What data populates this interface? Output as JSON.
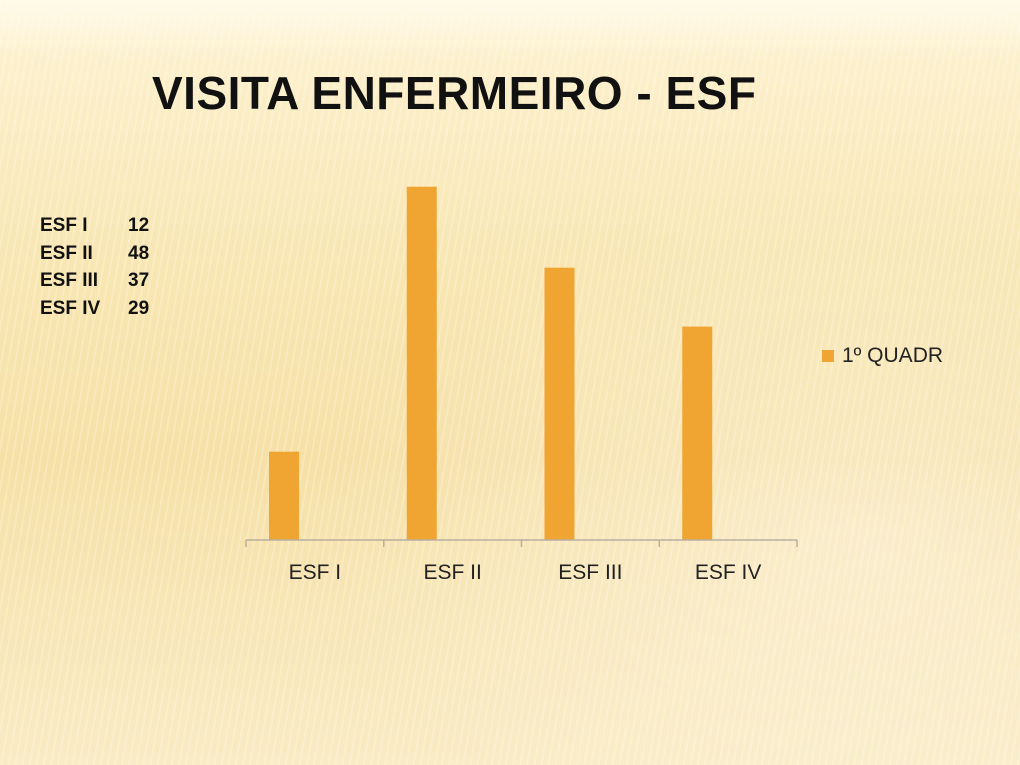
{
  "slide": {
    "title": "VISITA ENFERMEIRO - ESF",
    "data_list": [
      {
        "label": "ESF I",
        "value": "12"
      },
      {
        "label": "ESF II",
        "value": "48"
      },
      {
        "label": "ESF III",
        "value": "37"
      },
      {
        "label": "ESF IV",
        "value": "29"
      }
    ]
  },
  "chart_data": {
    "type": "bar",
    "categories": [
      "ESF I",
      "ESF II",
      "ESF III",
      "ESF IV"
    ],
    "series": [
      {
        "name": "1º QUADR",
        "values": [
          12,
          48,
          37,
          29
        ],
        "color": "#f0a533"
      }
    ],
    "title": "",
    "xlabel": "",
    "ylabel": "",
    "ylim": [
      0,
      50
    ],
    "grid": false,
    "legend": "right",
    "axis_color": "#b8b0a0"
  }
}
